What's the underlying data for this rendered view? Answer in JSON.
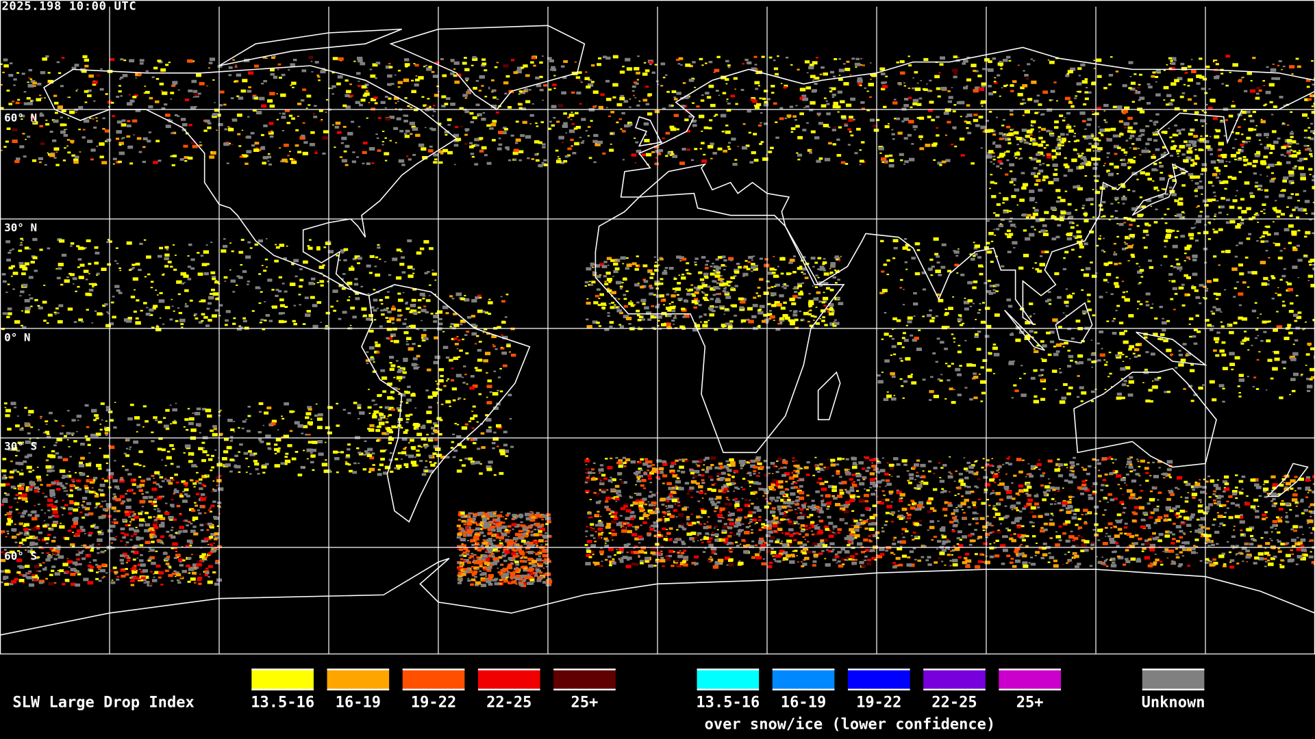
{
  "header": {
    "timestamp": "2025.198 10:00 UTC"
  },
  "map": {
    "projection": "equirectangular",
    "background": "#000000",
    "coastline_color": "#ffffff",
    "grid_color": "#ffffff",
    "lat_labels": [
      "60° N",
      "30° N",
      "0° N",
      "30° S",
      "60° S"
    ]
  },
  "legend": {
    "title": "SLW Large Drop Index",
    "categories": [
      {
        "label": "13.5-16",
        "color": "#ffff00"
      },
      {
        "label": "16-19",
        "color": "#ffa500"
      },
      {
        "label": "19-22",
        "color": "#ff5000"
      },
      {
        "label": "22-25",
        "color": "#f00000"
      },
      {
        "label": "25+",
        "color": "#600000"
      }
    ],
    "snow_categories": [
      {
        "label": "13.5-16",
        "color": "#00ffff"
      },
      {
        "label": "16-19",
        "color": "#0088ff"
      },
      {
        "label": "19-22",
        "color": "#0000ff"
      },
      {
        "label": "22-25",
        "color": "#7700dd"
      },
      {
        "label": "25+",
        "color": "#cc00cc"
      }
    ],
    "snow_note": "over snow/ice (lower confidence)",
    "unknown": {
      "label": "Unknown",
      "color": "#808080"
    }
  }
}
